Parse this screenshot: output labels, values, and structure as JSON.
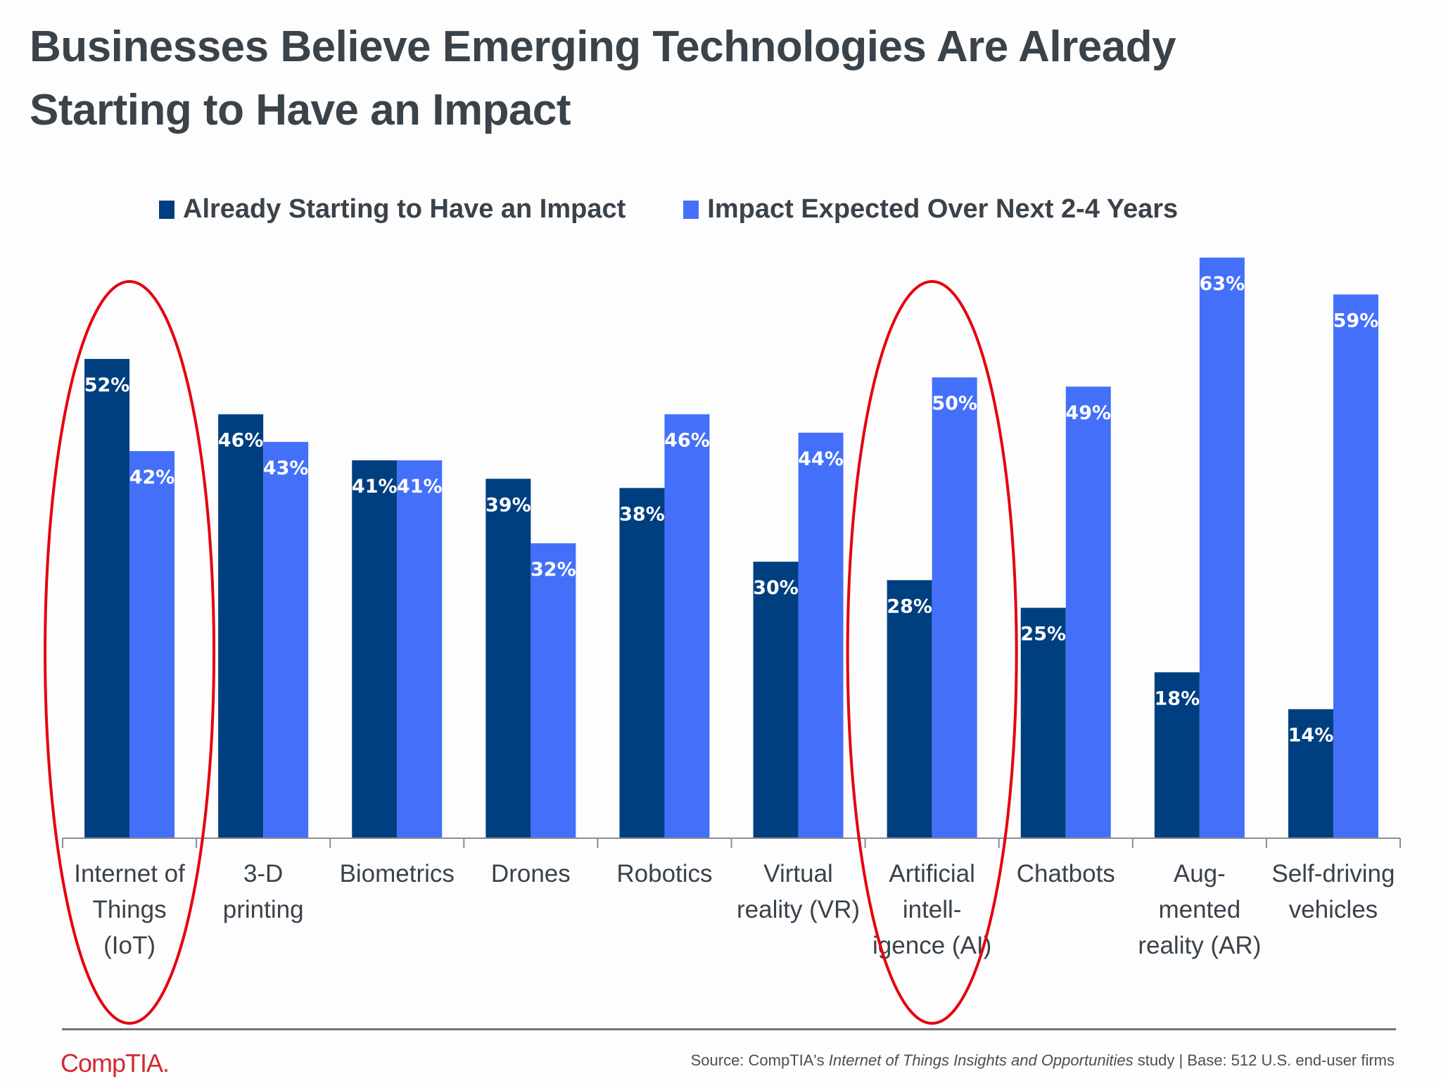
{
  "title_lines": [
    "Businesses Believe Emerging Technologies Are Already",
    "Starting to Have an Impact"
  ],
  "colors": {
    "series1": "#003f7f",
    "series2": "#4470f9",
    "highlight": "#e6000e",
    "text": "#3a424a",
    "brand": "#d22a2f"
  },
  "chart_data": {
    "type": "bar",
    "title": "Businesses Believe Emerging Technologies Are Already Starting to Have an Impact",
    "xlabel": "",
    "ylabel": "",
    "ylim": [
      0,
      63
    ],
    "grid": false,
    "legend": "top",
    "value_suffix": "%",
    "categories": [
      [
        "Internet of",
        "Things",
        "(IoT)"
      ],
      [
        "3-D",
        "printing"
      ],
      [
        "Biometrics"
      ],
      [
        "Drones"
      ],
      [
        "Robotics"
      ],
      [
        "Virtual",
        "reality (VR)"
      ],
      [
        "Artificial",
        "intell-",
        "igence (AI)"
      ],
      [
        "Chatbots"
      ],
      [
        "Aug-",
        "mented",
        "reality (AR)"
      ],
      [
        "Self-driving",
        "vehicles"
      ]
    ],
    "series": [
      {
        "name": "Already Starting to Have an Impact",
        "values": [
          52,
          46,
          41,
          39,
          38,
          30,
          28,
          25,
          18,
          14
        ]
      },
      {
        "name": "Impact Expected Over Next 2-4 Years",
        "values": [
          42,
          43,
          41,
          32,
          46,
          44,
          50,
          49,
          63,
          59
        ]
      }
    ],
    "annotations": [
      {
        "type": "ellipse",
        "category_index": 0,
        "label": "IoT highlight"
      },
      {
        "type": "ellipse",
        "category_index": 6,
        "label": "AI highlight"
      }
    ]
  },
  "footer": {
    "logo": "CompTIA.",
    "source_prefix": "Source: CompTIA's ",
    "source_study": "Internet of Things Insights and Opportunities",
    "source_suffix": " study | Base: 512 U.S. end-user firms"
  }
}
